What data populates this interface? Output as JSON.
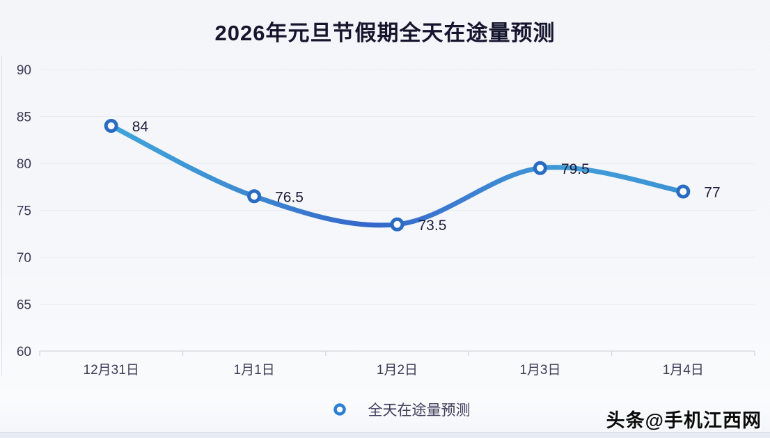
{
  "title": "2026年元旦节假期全天在途量预测",
  "legend": {
    "label": "全天在途量预测"
  },
  "watermark": "头条@手机江西网",
  "colors": {
    "line_gradient": [
      "#3ea5da",
      "#3e8fd3",
      "#3566cb",
      "#3c7ed1",
      "#409dd8",
      "#3c92d4"
    ],
    "marker_ring": "#2a6cc2",
    "marker_fill": "#ffffff",
    "grid": "#e8ebf1",
    "axis": "#d8dbe2",
    "tick_text": "#3a3a55",
    "data_label_text": "#1c1c38",
    "title_text": "#15152d"
  },
  "chart_data": {
    "type": "line",
    "title": "2026年元旦节假期全天在途量预测",
    "categories": [
      "12月31日",
      "1月1日",
      "1月2日",
      "1月3日",
      "1月4日"
    ],
    "series": [
      {
        "name": "全天在途量预测",
        "values": [
          84,
          76.5,
          73.5,
          79.5,
          77
        ]
      }
    ],
    "xlabel": "",
    "ylabel": "",
    "ylim": [
      60,
      90
    ],
    "ytick_step": 5,
    "grid": true,
    "smooth": true,
    "data_labels": true,
    "legend_position": "bottom"
  }
}
